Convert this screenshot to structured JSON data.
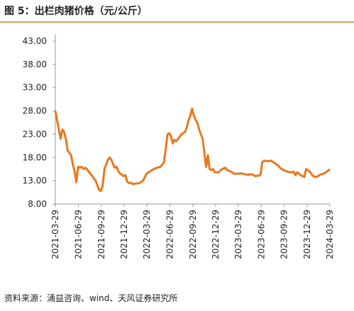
{
  "chart_data": {
    "type": "line",
    "title": "图 5：出栏肉猪价格（元/公斤）",
    "source": "资料来源：涌益咨询、wind、天风证券研究所",
    "series": [
      {
        "color": "#e8781e",
        "values": [
          28,
          26,
          24,
          22,
          24,
          23.5,
          22,
          19.5,
          19,
          18.5,
          16.5,
          15,
          12.7,
          16,
          15.8,
          16,
          15.5,
          15.8,
          15.5,
          15,
          14.5,
          14,
          13.5,
          13,
          12,
          11,
          10.8,
          12,
          15.5,
          16.5,
          17.5,
          18,
          17.5,
          16.5,
          15.8,
          16,
          15,
          14.5,
          14.3,
          14,
          14.2,
          12.8,
          12.5,
          12.6,
          12.3,
          12.4,
          12.5,
          13,
          14.5,
          15,
          15.5,
          15.8,
          16,
          17,
          20,
          23,
          23.2,
          22.5,
          21,
          21.8,
          21.5,
          22,
          23,
          23.5,
          24.5,
          26,
          27,
          28.5,
          27,
          26,
          25.5,
          24,
          23,
          22,
          19,
          16,
          18.5,
          15.5,
          15.3,
          15.5,
          14.8,
          14.8,
          15.5,
          15.8,
          15.3,
          15,
          14.5,
          14.5,
          14.6,
          14.4,
          14.3,
          14.4,
          14,
          14.1,
          14.3,
          17,
          17.3,
          17.2,
          17.3,
          16.8,
          16.3,
          15.8,
          15.3,
          15,
          14.8,
          14.9,
          14.2,
          14.8,
          14.2,
          13.8,
          15.5,
          15,
          14,
          13.8,
          14.3,
          14.5,
          15,
          15.5
        ]
      }
    ],
    "x": [
      "2021-03-29",
      "2021-04-05",
      "2021-04-12",
      "2021-04-19",
      "2021-04-26",
      "2021-05-03",
      "2021-05-10",
      "2021-05-17",
      "2021-05-24",
      "2021-05-31",
      "2021-06-07",
      "2021-06-14",
      "2021-06-21",
      "2021-06-28",
      "2021-07-05",
      "2021-07-12",
      "2021-07-19",
      "2021-07-26",
      "2021-08-02",
      "2021-08-09",
      "2021-08-16",
      "2021-08-23",
      "2021-08-30",
      "2021-09-06",
      "2021-09-13",
      "2021-09-20",
      "2021-09-27",
      "2021-10-04",
      "2021-10-11",
      "2021-10-18",
      "2021-10-25",
      "2021-11-01",
      "2021-11-08",
      "2021-11-15",
      "2021-11-22",
      "2021-11-29",
      "2021-12-06",
      "2021-12-13",
      "2021-12-20",
      "2021-12-27",
      "2022-01-03",
      "2022-01-10",
      "2022-01-17",
      "2022-01-24",
      "2022-01-31",
      "2022-02-14",
      "2022-02-28",
      "2022-03-14",
      "2022-03-28",
      "2022-04-11",
      "2022-04-25",
      "2022-05-09",
      "2022-05-23",
      "2022-06-06",
      "2022-06-13",
      "2022-06-20",
      "2022-06-27",
      "2022-07-04",
      "2022-07-11",
      "2022-07-18",
      "2022-07-25",
      "2022-08-01",
      "2022-08-15",
      "2022-08-29",
      "2022-09-05",
      "2022-09-12",
      "2022-09-19",
      "2022-09-26",
      "2022-10-03",
      "2022-10-10",
      "2022-10-17",
      "2022-10-24",
      "2022-10-31",
      "2022-11-07",
      "2022-11-14",
      "2022-11-21",
      "2022-11-28",
      "2022-12-05",
      "2022-12-12",
      "2022-12-19",
      "2022-12-26",
      "2023-01-09",
      "2023-01-23",
      "2023-02-06",
      "2023-02-13",
      "2023-02-27",
      "2023-03-13",
      "2023-03-27",
      "2023-04-10",
      "2023-04-24",
      "2023-05-08",
      "2023-05-22",
      "2023-06-05",
      "2023-06-19",
      "2023-06-26",
      "2023-07-03",
      "2023-07-10",
      "2023-07-24",
      "2023-08-07",
      "2023-08-21",
      "2023-09-04",
      "2023-09-11",
      "2023-09-25",
      "2023-10-09",
      "2023-10-23",
      "2023-11-06",
      "2023-11-13",
      "2023-11-20",
      "2023-12-04",
      "2023-12-18",
      "2023-12-25",
      "2024-01-08",
      "2024-01-22",
      "2024-02-05",
      "2024-02-19",
      "2024-03-04",
      "2024-03-18",
      "2024-03-29"
    ],
    "xlim": [
      "2021-03-29",
      "2024-03-29"
    ],
    "xticks": [
      "2021-03-29",
      "2021-06-29",
      "2021-09-29",
      "2021-12-29",
      "2022-03-29",
      "2022-06-29",
      "2022-09-29",
      "2022-12-29",
      "2023-03-29",
      "2023-06-29",
      "2023-09-29",
      "2023-12-29",
      "2024-03-29"
    ],
    "ylim": [
      8,
      43
    ],
    "yticks": [
      {
        "value": 8,
        "label": "8.00"
      },
      {
        "value": 13,
        "label": "13.00"
      },
      {
        "value": 18,
        "label": "18.00"
      },
      {
        "value": 23,
        "label": "23.00"
      },
      {
        "value": 28,
        "label": "28.00"
      },
      {
        "value": 33,
        "label": "33.00"
      },
      {
        "value": 38,
        "label": "38.00"
      },
      {
        "value": 43,
        "label": "43.00"
      }
    ]
  }
}
